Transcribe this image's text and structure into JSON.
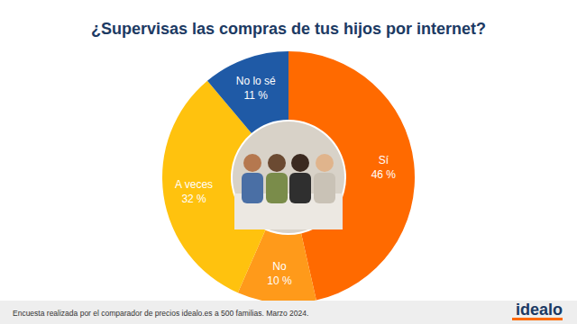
{
  "chart_data": {
    "type": "pie",
    "title": "¿Supervisas las compras de tus hijos por internet?",
    "categories": [
      "Sí",
      "No",
      "A veces",
      "No lo sé"
    ],
    "values": [
      46,
      10,
      32,
      11
    ],
    "value_labels": [
      "46 %",
      "10 %",
      "32 %",
      "11 %"
    ],
    "colors": [
      "#ff6a00",
      "#ff9a1a",
      "#ffc20e",
      "#1f5aa6"
    ],
    "data_labels": true,
    "source": "Encuesta realizada por el comparador de precios idealo.es a 500 familias. Marzo 2024.",
    "logo": "idealo"
  }
}
